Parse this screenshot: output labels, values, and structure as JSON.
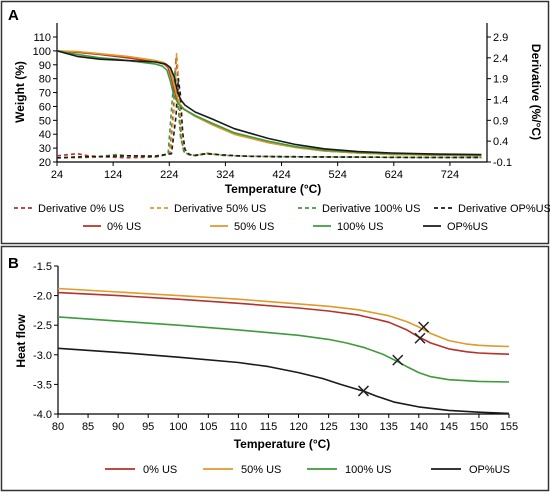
{
  "chart_data": [
    {
      "panel": "A",
      "type": "line",
      "xlabel": "Temperature (°C)",
      "ylabel": "Weight (%)",
      "y2label": "Derivative (%/°C)",
      "xlim": [
        24,
        790
      ],
      "ylim": [
        20,
        110
      ],
      "y2lim": [
        -0.1,
        2.9
      ],
      "xticks": [
        "24",
        "124",
        "224",
        "324",
        "424",
        "524",
        "624",
        "724"
      ],
      "xtick_values": [
        24,
        124,
        224,
        324,
        424,
        524,
        624,
        724
      ],
      "yticks": [
        "20",
        "30",
        "40",
        "50",
        "60",
        "70",
        "80",
        "90",
        "100",
        "110"
      ],
      "ytick_values": [
        20,
        30,
        40,
        50,
        60,
        70,
        80,
        90,
        100,
        110
      ],
      "y2ticks": [
        "-0.1",
        "0.4",
        "0.9",
        "1.4",
        "1.9",
        "2.4",
        "2.9"
      ],
      "y2tick_values": [
        -0.1,
        0.4,
        0.9,
        1.4,
        1.9,
        2.4,
        2.9
      ],
      "legend_position": "bottom",
      "series": [
        {
          "name": "Derivative 0% US",
          "axis": "right",
          "style": "dashed",
          "color": "#b8312f",
          "x": [
            24,
            60,
            80,
            110,
            150,
            200,
            225,
            232,
            236,
            240,
            245,
            250,
            258,
            270,
            290,
            320,
            360,
            420,
            520,
            650,
            780
          ],
          "y": [
            0.05,
            0.1,
            0.05,
            0.02,
            0.0,
            0.02,
            0.1,
            1.3,
            2.4,
            1.8,
            0.5,
            0.15,
            0.08,
            0.05,
            0.1,
            0.06,
            0.04,
            0.02,
            0.02,
            0.01,
            0.01
          ]
        },
        {
          "name": "Derivative 50% US",
          "axis": "right",
          "style": "dashed",
          "color": "#e09a2a",
          "x": [
            24,
            60,
            100,
            150,
            200,
            226,
            233,
            237,
            240,
            245,
            250,
            258,
            270,
            290,
            320,
            360,
            420,
            520,
            650,
            780
          ],
          "y": [
            0.0,
            0.0,
            0.02,
            0.05,
            0.05,
            0.1,
            1.2,
            2.5,
            2.0,
            0.6,
            0.15,
            0.08,
            0.05,
            0.12,
            0.06,
            0.04,
            0.03,
            0.02,
            0.01,
            0.01
          ]
        },
        {
          "name": "Derivative 100% US",
          "axis": "right",
          "style": "dashed",
          "color": "#3f9a3a",
          "x": [
            24,
            60,
            100,
            130,
            150,
            200,
            222,
            230,
            234,
            238,
            244,
            250,
            258,
            270,
            290,
            320,
            360,
            420,
            520,
            650,
            780
          ],
          "y": [
            0.0,
            0.02,
            0.03,
            0.08,
            0.05,
            0.03,
            0.1,
            1.5,
            2.1,
            1.6,
            0.5,
            0.15,
            0.08,
            0.06,
            0.1,
            0.06,
            0.04,
            0.03,
            0.02,
            0.01,
            0.01
          ]
        },
        {
          "name": "Derivative OP%US",
          "axis": "right",
          "style": "dashed",
          "color": "#1a1a1a",
          "x": [
            24,
            60,
            100,
            150,
            200,
            228,
            236,
            240,
            244,
            248,
            252,
            260,
            270,
            290,
            320,
            360,
            420,
            520,
            650,
            780
          ],
          "y": [
            0.0,
            0.02,
            0.03,
            0.05,
            0.04,
            0.1,
            1.0,
            1.9,
            1.5,
            0.6,
            0.2,
            0.08,
            0.06,
            0.1,
            0.07,
            0.04,
            0.03,
            0.02,
            0.01,
            0.01
          ]
        },
        {
          "name": "0% US",
          "axis": "left",
          "style": "solid",
          "color": "#b8312f",
          "x": [
            24,
            60,
            100,
            150,
            200,
            215,
            222,
            228,
            234,
            240,
            250,
            270,
            300,
            340,
            400,
            450,
            500,
            560,
            620,
            700,
            780
          ],
          "y": [
            100,
            99,
            97.5,
            95,
            92,
            90.5,
            88,
            80,
            70,
            63,
            58,
            53,
            47,
            40,
            34,
            30.5,
            28,
            26.5,
            25.5,
            25,
            24.7
          ]
        },
        {
          "name": "50% US",
          "axis": "left",
          "style": "solid",
          "color": "#e09a2a",
          "x": [
            24,
            60,
            100,
            150,
            200,
            215,
            224,
            230,
            236,
            242,
            250,
            270,
            300,
            340,
            400,
            450,
            500,
            560,
            620,
            700,
            780
          ],
          "y": [
            100,
            99.5,
            98,
            96,
            93,
            91.5,
            88,
            80,
            70,
            62,
            58,
            53,
            47,
            40,
            34,
            30.5,
            28,
            26.5,
            25.5,
            25,
            24.7
          ]
        },
        {
          "name": "100% US",
          "axis": "left",
          "style": "solid",
          "color": "#3f9a3a",
          "x": [
            24,
            60,
            100,
            130,
            150,
            200,
            212,
            220,
            226,
            232,
            240,
            250,
            270,
            300,
            340,
            400,
            450,
            500,
            560,
            620,
            700,
            780
          ],
          "y": [
            100,
            97.5,
            95,
            94,
            93,
            90.5,
            89,
            86,
            78,
            68,
            62,
            58,
            53.5,
            48,
            41,
            35,
            31,
            28.5,
            27,
            26,
            25.3,
            25
          ]
        },
        {
          "name": "OP%US",
          "axis": "left",
          "style": "solid",
          "color": "#1a1a1a",
          "x": [
            24,
            60,
            100,
            150,
            200,
            218,
            226,
            233,
            238,
            244,
            252,
            270,
            300,
            340,
            400,
            450,
            500,
            560,
            620,
            700,
            780
          ],
          "y": [
            100,
            96,
            94,
            93,
            92,
            90.5,
            88,
            81,
            72,
            65,
            61,
            56,
            51,
            44,
            37,
            32.5,
            29.5,
            27.5,
            26.5,
            25.7,
            25.3
          ]
        }
      ]
    },
    {
      "panel": "B",
      "type": "line",
      "xlabel": "Temperature (°C)",
      "ylabel": "Heat flow",
      "xlim": [
        80,
        155
      ],
      "ylim": [
        -4.0,
        -1.5
      ],
      "xticks": [
        "80",
        "85",
        "90",
        "95",
        "100",
        "105",
        "110",
        "115",
        "120",
        "125",
        "130",
        "135",
        "140",
        "145",
        "150",
        "155"
      ],
      "xtick_values": [
        80,
        85,
        90,
        95,
        100,
        105,
        110,
        115,
        120,
        125,
        130,
        135,
        140,
        145,
        150,
        155
      ],
      "yticks": [
        "-1.5",
        "-2.0",
        "-2.5",
        "-3.0",
        "-3.5",
        "-4.0"
      ],
      "ytick_values": [
        -1.5,
        -2.0,
        -2.5,
        -3.0,
        -3.5,
        -4.0
      ],
      "legend_position": "bottom",
      "series": [
        {
          "name": "0% US",
          "color": "#b8312f",
          "x": [
            80,
            90,
            100,
            110,
            120,
            125,
            130,
            135,
            138,
            140,
            142,
            145,
            148,
            150,
            152,
            155
          ],
          "y": [
            -1.95,
            -2.0,
            -2.06,
            -2.13,
            -2.21,
            -2.26,
            -2.33,
            -2.45,
            -2.58,
            -2.7,
            -2.8,
            -2.9,
            -2.95,
            -2.97,
            -2.98,
            -2.99
          ],
          "marker": {
            "x": 140.2,
            "y": -2.72
          }
        },
        {
          "name": "50% US",
          "color": "#e09a2a",
          "x": [
            80,
            90,
            100,
            110,
            120,
            125,
            130,
            135,
            138,
            140,
            142,
            145,
            148,
            150,
            152,
            155
          ],
          "y": [
            -1.88,
            -1.94,
            -2.0,
            -2.06,
            -2.14,
            -2.18,
            -2.24,
            -2.34,
            -2.44,
            -2.53,
            -2.64,
            -2.76,
            -2.82,
            -2.84,
            -2.85,
            -2.86
          ],
          "marker": {
            "x": 140.8,
            "y": -2.53
          }
        },
        {
          "name": "100% US",
          "color": "#3f9a3a",
          "x": [
            80,
            90,
            100,
            110,
            120,
            125,
            128,
            131,
            134,
            136,
            138,
            140,
            142,
            145,
            150,
            155
          ],
          "y": [
            -2.36,
            -2.43,
            -2.5,
            -2.58,
            -2.67,
            -2.74,
            -2.8,
            -2.88,
            -2.99,
            -3.09,
            -3.2,
            -3.3,
            -3.37,
            -3.42,
            -3.45,
            -3.46
          ],
          "marker": {
            "x": 136.5,
            "y": -3.09
          }
        },
        {
          "name": "OP%US",
          "color": "#1a1a1a",
          "x": [
            80,
            90,
            100,
            110,
            115,
            120,
            124,
            127,
            129,
            131,
            133,
            136,
            140,
            145,
            150,
            155
          ],
          "y": [
            -2.89,
            -2.96,
            -3.04,
            -3.13,
            -3.2,
            -3.3,
            -3.4,
            -3.5,
            -3.56,
            -3.62,
            -3.7,
            -3.8,
            -3.88,
            -3.94,
            -3.97,
            -3.99
          ],
          "marker": {
            "x": 130.8,
            "y": -3.61
          }
        }
      ]
    }
  ]
}
